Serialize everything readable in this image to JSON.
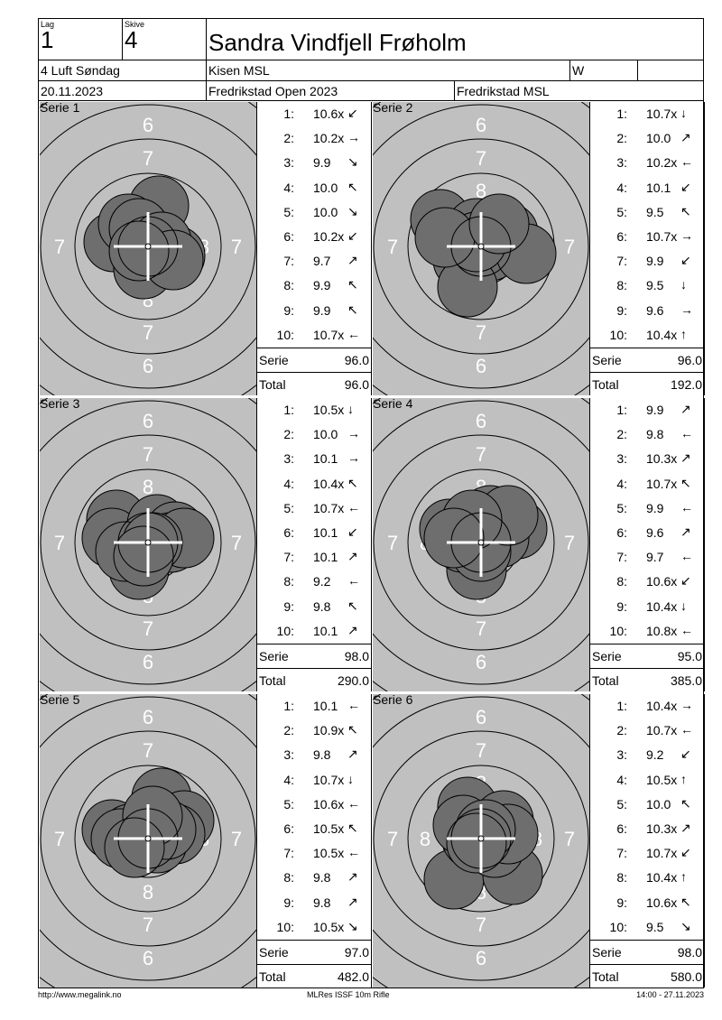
{
  "header": {
    "lag_label": "Lag",
    "lag_value": "1",
    "skive_label": "Skive",
    "skive_value": "4",
    "shooter_name": "Sandra Vindfjell Frøholm",
    "class_name": "4 Luft Søndag",
    "club": "Kisen MSL",
    "code": "W",
    "date": "20.11.2023",
    "event": "Fredrikstad Open 2023",
    "organizer": "Fredrikstad MSL"
  },
  "series": [
    {
      "label": "Serie 1",
      "serie_label": "Serie",
      "serie_sum": "96.0",
      "total_label": "Total",
      "total": "96.0",
      "shots": [
        [
          "1:",
          "10.6x",
          "↙"
        ],
        [
          "2:",
          "10.2x",
          "→"
        ],
        [
          "3:",
          "9.9",
          "↘"
        ],
        [
          "4:",
          "10.0",
          "↖"
        ],
        [
          "5:",
          "10.0",
          "↘"
        ],
        [
          "6:",
          "10.2x",
          "↙"
        ],
        [
          "7:",
          "9.7",
          "↗"
        ],
        [
          "8:",
          "9.9",
          "↖"
        ],
        [
          "9:",
          "9.9",
          "↖"
        ],
        [
          "10:",
          "10.7x",
          "←"
        ]
      ]
    },
    {
      "label": "Serie 2",
      "serie_label": "Serie",
      "serie_sum": "96.0",
      "total_label": "Total",
      "total": "192.0",
      "shots": [
        [
          "1:",
          "10.7x",
          "↓"
        ],
        [
          "2:",
          "10.0",
          "↗"
        ],
        [
          "3:",
          "10.2x",
          "←"
        ],
        [
          "4:",
          "10.1",
          "↙"
        ],
        [
          "5:",
          "9.5",
          "↖"
        ],
        [
          "6:",
          "10.7x",
          "→"
        ],
        [
          "7:",
          "9.9",
          "↙"
        ],
        [
          "8:",
          "9.5",
          "↓"
        ],
        [
          "9:",
          "9.6",
          "→"
        ],
        [
          "10:",
          "10.4x",
          "↑"
        ]
      ]
    },
    {
      "label": "Serie 3",
      "serie_label": "Serie",
      "serie_sum": "98.0",
      "total_label": "Total",
      "total": "290.0",
      "shots": [
        [
          "1:",
          "10.5x",
          "↓"
        ],
        [
          "2:",
          "10.0",
          "→"
        ],
        [
          "3:",
          "10.1",
          "→"
        ],
        [
          "4:",
          "10.4x",
          "↖"
        ],
        [
          "5:",
          "10.7x",
          "←"
        ],
        [
          "6:",
          "10.1",
          "↙"
        ],
        [
          "7:",
          "10.1",
          "↗"
        ],
        [
          "8:",
          "9.2",
          "←"
        ],
        [
          "9:",
          "9.8",
          "↖"
        ],
        [
          "10:",
          "10.1",
          "↗"
        ]
      ]
    },
    {
      "label": "Serie 4",
      "serie_label": "Serie",
      "serie_sum": "95.0",
      "total_label": "Total",
      "total": "385.0",
      "shots": [
        [
          "1:",
          "9.9",
          "↗"
        ],
        [
          "2:",
          "9.8",
          "←"
        ],
        [
          "3:",
          "10.3x",
          "↗"
        ],
        [
          "4:",
          "10.7x",
          "↖"
        ],
        [
          "5:",
          "9.9",
          "←"
        ],
        [
          "6:",
          "9.6",
          "↗"
        ],
        [
          "7:",
          "9.7",
          "←"
        ],
        [
          "8:",
          "10.6x",
          "↙"
        ],
        [
          "9:",
          "10.4x",
          "↓"
        ],
        [
          "10:",
          "10.8x",
          "←"
        ]
      ]
    },
    {
      "label": "Serie 5",
      "serie_label": "Serie",
      "serie_sum": "97.0",
      "total_label": "Total",
      "total": "482.0",
      "shots": [
        [
          "1:",
          "10.1",
          "←"
        ],
        [
          "2:",
          "10.9x",
          "↖"
        ],
        [
          "3:",
          "9.8",
          "↗"
        ],
        [
          "4:",
          "10.7x",
          "↓"
        ],
        [
          "5:",
          "10.6x",
          "←"
        ],
        [
          "6:",
          "10.5x",
          "↖"
        ],
        [
          "7:",
          "10.5x",
          "←"
        ],
        [
          "8:",
          "9.8",
          "↗"
        ],
        [
          "9:",
          "9.8",
          "↗"
        ],
        [
          "10:",
          "10.5x",
          "↘"
        ]
      ]
    },
    {
      "label": "Serie 6",
      "serie_label": "Serie",
      "serie_sum": "98.0",
      "total_label": "Total",
      "total": "580.0",
      "shots": [
        [
          "1:",
          "10.4x",
          "→"
        ],
        [
          "2:",
          "10.7x",
          "←"
        ],
        [
          "3:",
          "9.2",
          "↙"
        ],
        [
          "4:",
          "10.5x",
          "↑"
        ],
        [
          "5:",
          "10.0",
          "↖"
        ],
        [
          "6:",
          "10.3x",
          "↗"
        ],
        [
          "7:",
          "10.7x",
          "↙"
        ],
        [
          "8:",
          "10.4x",
          "↑"
        ],
        [
          "9:",
          "10.6x",
          "↖"
        ],
        [
          "10:",
          "9.5",
          "↘"
        ]
      ]
    }
  ],
  "ring_numbers": {
    "six": "6",
    "seven": "7",
    "eight": "8"
  },
  "footer": {
    "left": "http://www.megalink.no",
    "center": "MLRes ISSF 10m Rifle",
    "right": "14:00 - 27.11.2023"
  },
  "colors": {
    "target_bg": "#c0c0c0",
    "hole": "#6e6e6e",
    "line": "#000000"
  }
}
